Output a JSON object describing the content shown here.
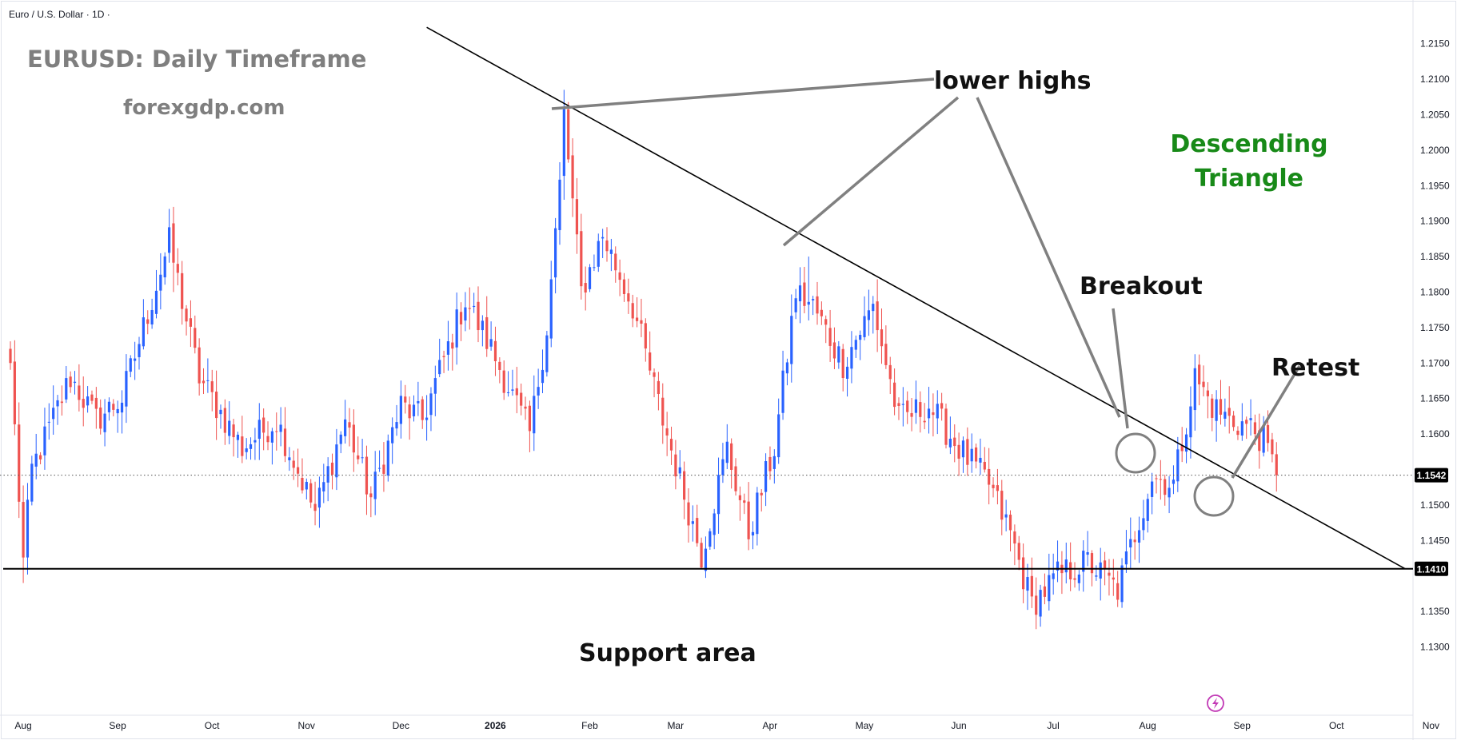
{
  "header": {
    "symbol_line": "Euro / U.S. Dollar · 1D ·"
  },
  "annotations": {
    "title": "EURUSD: Daily Timeframe",
    "source": "forexgdp.com",
    "lower_highs": "lower highs",
    "pattern_line1": "Descending",
    "pattern_line2": "Triangle",
    "breakout": "Breakout",
    "retest": "Retest",
    "support": "Support area"
  },
  "colors": {
    "up": "#2962ff",
    "down": "#ef5350",
    "line": "#000000",
    "annotation_gray": "#808080",
    "pattern_green": "#188a18",
    "title_gray": "#7f7f7f",
    "grid_border": "#e0e3eb"
  },
  "chart_data": {
    "type": "candlestick",
    "title": "",
    "xlabel": "",
    "ylabel": "",
    "ylim": [
      1.126,
      1.218
    ],
    "y_ticks": [
      1.215,
      1.21,
      1.205,
      1.2,
      1.195,
      1.19,
      1.185,
      1.18,
      1.175,
      1.17,
      1.165,
      1.16,
      1.15,
      1.145,
      1.135,
      1.13
    ],
    "y_tick_labels": [
      "1.2150",
      "1.2100",
      "1.2050",
      "1.2000",
      "1.1950",
      "1.1900",
      "1.1850",
      "1.1800",
      "1.1750",
      "1.1700",
      "1.1650",
      "1.1600",
      "1.1500",
      "1.1450",
      "1.1350",
      "1.1300"
    ],
    "x_labels": [
      "Aug",
      "Sep",
      "Oct",
      "Nov",
      "Dec",
      "2026",
      "Feb",
      "Mar",
      "Apr",
      "May",
      "Jun",
      "Jul",
      "Aug",
      "Sep",
      "Oct",
      "Nov"
    ],
    "x_label_bars": [
      0,
      22,
      44,
      66,
      88,
      110,
      132,
      152,
      174,
      196,
      218,
      240,
      262,
      284,
      306,
      328
    ],
    "bar_count": 338,
    "price_labels": [
      {
        "price": 1.1542,
        "label": "1.1542",
        "style": "dotted"
      },
      {
        "price": 1.141,
        "label": "1.1410",
        "style": "solid"
      }
    ],
    "support_level": 1.141,
    "trendline": {
      "from": {
        "bar": 97,
        "price": 1.2173
      },
      "to": {
        "bar": 325,
        "price": 1.141
      }
    },
    "anchors": [
      {
        "bar": 0,
        "price": 1.17
      },
      {
        "bar": 3,
        "price": 1.142
      },
      {
        "bar": 5,
        "price": 1.155
      },
      {
        "bar": 14,
        "price": 1.168
      },
      {
        "bar": 20,
        "price": 1.162
      },
      {
        "bar": 26,
        "price": 1.165
      },
      {
        "bar": 37,
        "price": 1.187
      },
      {
        "bar": 44,
        "price": 1.168
      },
      {
        "bar": 54,
        "price": 1.158
      },
      {
        "bar": 62,
        "price": 1.162
      },
      {
        "bar": 71,
        "price": 1.149
      },
      {
        "bar": 78,
        "price": 1.162
      },
      {
        "bar": 84,
        "price": 1.151
      },
      {
        "bar": 91,
        "price": 1.164
      },
      {
        "bar": 96,
        "price": 1.162
      },
      {
        "bar": 106,
        "price": 1.179
      },
      {
        "bar": 112,
        "price": 1.172
      },
      {
        "bar": 121,
        "price": 1.16
      },
      {
        "bar": 125,
        "price": 1.175
      },
      {
        "bar": 128,
        "price": 1.195
      },
      {
        "bar": 129,
        "price": 1.205
      },
      {
        "bar": 133,
        "price": 1.18
      },
      {
        "bar": 138,
        "price": 1.188
      },
      {
        "bar": 145,
        "price": 1.178
      },
      {
        "bar": 152,
        "price": 1.162
      },
      {
        "bar": 161,
        "price": 1.143
      },
      {
        "bar": 167,
        "price": 1.158
      },
      {
        "bar": 172,
        "price": 1.146
      },
      {
        "bar": 178,
        "price": 1.158
      },
      {
        "bar": 183,
        "price": 1.18
      },
      {
        "bar": 187,
        "price": 1.178
      },
      {
        "bar": 194,
        "price": 1.17
      },
      {
        "bar": 201,
        "price": 1.178
      },
      {
        "bar": 207,
        "price": 1.162
      },
      {
        "bar": 214,
        "price": 1.164
      },
      {
        "bar": 221,
        "price": 1.158
      },
      {
        "bar": 228,
        "price": 1.153
      },
      {
        "bar": 233,
        "price": 1.146
      },
      {
        "bar": 238,
        "price": 1.136
      },
      {
        "bar": 244,
        "price": 1.14
      },
      {
        "bar": 251,
        "price": 1.142
      },
      {
        "bar": 258,
        "price": 1.138
      },
      {
        "bar": 262,
        "price": 1.146
      },
      {
        "bar": 266,
        "price": 1.154
      },
      {
        "bar": 271,
        "price": 1.153
      },
      {
        "bar": 276,
        "price": 1.168
      },
      {
        "bar": 280,
        "price": 1.164
      },
      {
        "bar": 284,
        "price": 1.162
      },
      {
        "bar": 289,
        "price": 1.161
      },
      {
        "bar": 292,
        "price": 1.159
      },
      {
        "bar": 295,
        "price": 1.1542
      }
    ],
    "highlights": [
      {
        "bar": 129,
        "high": 1.2085,
        "low": 1.193
      },
      {
        "bar": 38,
        "high": 1.192,
        "low": 1.18
      },
      {
        "bar": 186,
        "high": 1.185,
        "low": 1.176
      },
      {
        "bar": 3,
        "low": 1.139
      },
      {
        "bar": 161,
        "low": 1.141
      },
      {
        "bar": 239,
        "low": 1.1325
      },
      {
        "bar": 259,
        "low": 1.1355
      },
      {
        "bar": 277,
        "high": 1.1712
      }
    ]
  }
}
